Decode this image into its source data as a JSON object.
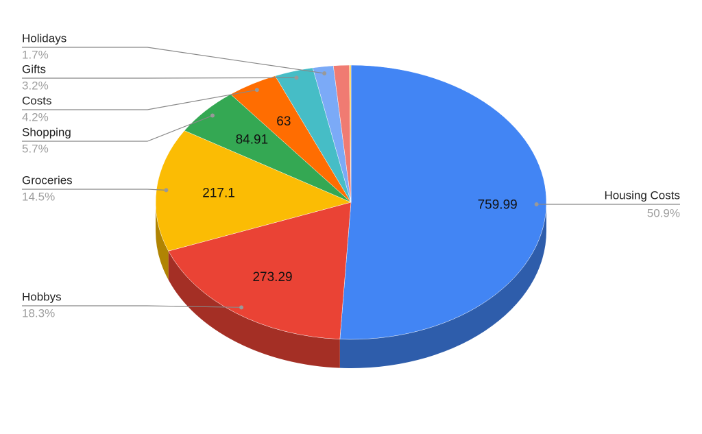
{
  "chart_data": {
    "type": "pie3d",
    "categories": [
      "Housing Costs",
      "Hobbys",
      "Groceries",
      "Shopping",
      "Costs",
      "Gifts",
      "Holidays",
      null,
      null
    ],
    "values": [
      759.99,
      273.29,
      217.1,
      84.91,
      63,
      47.8,
      25.4,
      19.5,
      2
    ],
    "percent_labels": [
      "50.9%",
      "18.3%",
      "14.5%",
      "5.7%",
      "4.2%",
      "3.2%",
      "1.7%",
      null,
      null
    ],
    "show_values": [
      true,
      true,
      true,
      true,
      true,
      false,
      false,
      false,
      false
    ],
    "colors": [
      "#4285f4",
      "#ea4335",
      "#fbbc04",
      "#34a853",
      "#ff6d01",
      "#46bdc6",
      "#7baaf7",
      "#f07b72",
      "#fcd04f"
    ]
  }
}
